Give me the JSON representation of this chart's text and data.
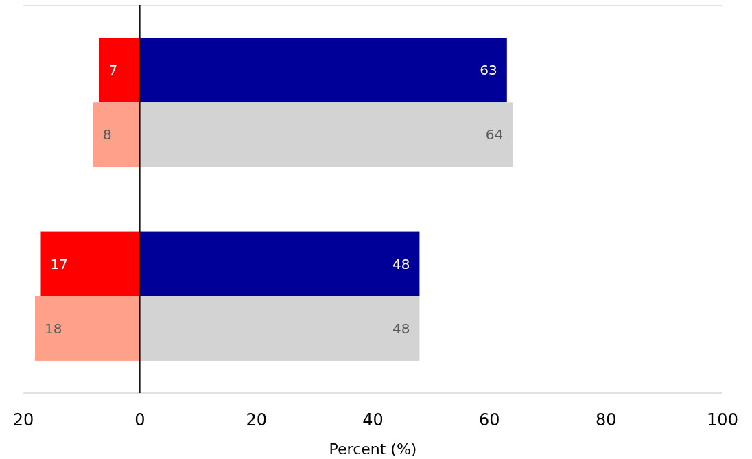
{
  "chart_data": {
    "type": "bar",
    "orientation": "horizontal",
    "xlabel": "Percent (%)",
    "data_labels": true,
    "categories": [
      null,
      null
    ],
    "series": [
      {
        "color": "#ff0000",
        "values": [
          7,
          17
        ],
        "base": [
          -7,
          -17
        ]
      },
      {
        "color": "#000099",
        "values": [
          63,
          48
        ]
      },
      {
        "color": "#ffa08a",
        "values": [
          8,
          18
        ],
        "base": [
          -8,
          -18
        ]
      },
      {
        "color": "#d3d3d3",
        "values": [
          64,
          48
        ]
      }
    ],
    "xlim": [
      -20,
      100
    ],
    "xticks": [
      {
        "value": -20,
        "label": "20"
      },
      0,
      20,
      40,
      60,
      80,
      100
    ]
  }
}
